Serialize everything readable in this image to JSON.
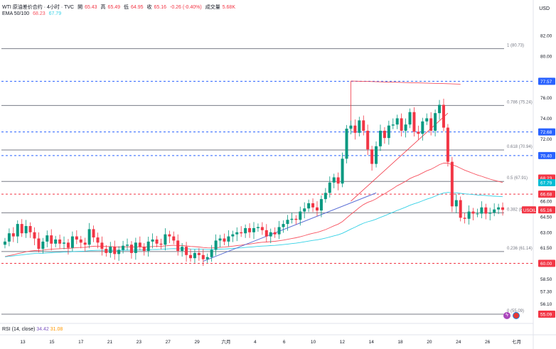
{
  "header": {
    "symbol_title": "WTI 原油差价合约 · 4小时 · TVC",
    "open_label": "開",
    "open": "65.43",
    "high_label": "高",
    "high": "65.49",
    "low_label": "低",
    "low": "64.95",
    "close_label": "收",
    "close": "65.16",
    "change": "-0.26 (-0.40%)",
    "volume_label": "成交量",
    "volume": "5.68K",
    "ema_label": "EMA 50/100",
    "ema50": "68.23",
    "ema100": "67.79"
  },
  "currency": "USD",
  "rsi_legend": {
    "label": "RSI (14, close)",
    "v1": "34.42",
    "v2": "31.08"
  },
  "colors": {
    "up": "#089981",
    "down": "#f23645",
    "ema50": "#f7525f",
    "ema100": "#33d1e6",
    "trend": "#5b6fd6",
    "fib": "#787b86",
    "blue_dash": "#2962ff",
    "red_dash": "#f23645"
  },
  "icons": [
    "alert-icon",
    "flag-icon"
  ],
  "chart_data": {
    "type": "candlestick",
    "ylim": [
      54.2,
      83.5
    ],
    "y_ticks": [
      "82.00",
      "80.00",
      "76.00",
      "74.00",
      "72.00",
      "66.00",
      "64.50",
      "63.00",
      "61.50",
      "58.50",
      "57.30",
      "56.10"
    ],
    "x_ticks": [
      "13",
      "15",
      "17",
      "21",
      "23",
      "27",
      "29",
      "六月",
      "4",
      "6",
      "10",
      "12",
      "14",
      "18",
      "20",
      "24",
      "26",
      "七月"
    ],
    "fib_levels": [
      {
        "label": "1 (80.73)",
        "value": 80.73
      },
      {
        "label": "0.786 (75.24)",
        "value": 75.24
      },
      {
        "label": "0.618 (70.94)",
        "value": 70.94
      },
      {
        "label": "0.5 (67.91)",
        "value": 67.91
      },
      {
        "label": "0.382 (64.88)",
        "value": 64.88
      },
      {
        "label": "0.236 (61.14)",
        "value": 61.14
      },
      {
        "label": "0 (55.09)",
        "value": 55.09
      }
    ],
    "price_tags": [
      {
        "label": "77.57",
        "value": 77.57,
        "color": "#2962ff"
      },
      {
        "label": "72.68",
        "value": 72.68,
        "color": "#2962ff"
      },
      {
        "label": "70.40",
        "value": 70.4,
        "color": "#2962ff"
      },
      {
        "label": "68.23",
        "value": 68.23,
        "color": "#f23645"
      },
      {
        "label": "67.79",
        "value": 67.79,
        "color": "#00bcd4"
      },
      {
        "label": "66.68",
        "value": 66.68,
        "color": "#f23645"
      },
      {
        "label": "USOIL",
        "value": 65.16,
        "color": "#f23645"
      },
      {
        "label": "65.16",
        "value": 65.16,
        "color": "#f23645"
      },
      {
        "label": "60.00",
        "value": 60.0,
        "color": "#f23645"
      },
      {
        "label": "55.09",
        "value": 55.09,
        "color": "#f23645"
      }
    ],
    "dashed_lines": [
      {
        "value": 77.57,
        "color": "#2962ff"
      },
      {
        "value": 72.68,
        "color": "#2962ff"
      },
      {
        "value": 70.4,
        "color": "#2962ff"
      },
      {
        "value": 66.68,
        "color": "#f23645"
      },
      {
        "value": 60.0,
        "color": "#f23645"
      }
    ],
    "closes": [
      62.1,
      62.9,
      62.6,
      63.8,
      62.9,
      63.6,
      63.0,
      62.4,
      61.4,
      62.1,
      62.7,
      61.9,
      62.3,
      61.9,
      62.0,
      61.5,
      62.6,
      62.3,
      62.0,
      61.8,
      63.3,
      62.5,
      62.0,
      61.4,
      61.0,
      61.6,
      60.9,
      61.3,
      61.7,
      61.8,
      61.0,
      62.0,
      61.6,
      61.2,
      62.1,
      62.3,
      61.9,
      61.8,
      62.8,
      62.6,
      62.2,
      61.2,
      61.6,
      60.8,
      60.5,
      61.0,
      60.8,
      60.4,
      60.6,
      61.3,
      62.2,
      62.4,
      62.1,
      62.6,
      62.8,
      63.0,
      62.9,
      63.4,
      63.0,
      63.4,
      63.5,
      63.2,
      62.6,
      63.0,
      62.8,
      63.5,
      63.8,
      64.2,
      64.3,
      64.2,
      65.0,
      65.3,
      65.8,
      65.4,
      65.1,
      66.2,
      66.8,
      67.8,
      68.3,
      67.7,
      70.1,
      73.0,
      73.3,
      72.6,
      73.8,
      72.8,
      71.0,
      69.6,
      71.3,
      72.8,
      72.1,
      73.3,
      73.4,
      74.0,
      72.8,
      73.4,
      74.6,
      72.7,
      72.5,
      73.7,
      74.0,
      72.8,
      74.5,
      75.3,
      73.1,
      69.8,
      65.5,
      66.1,
      64.4,
      64.3,
      65.0,
      64.8,
      64.8,
      65.4,
      64.8,
      64.9,
      65.2,
      65.4,
      65.16
    ]
  }
}
